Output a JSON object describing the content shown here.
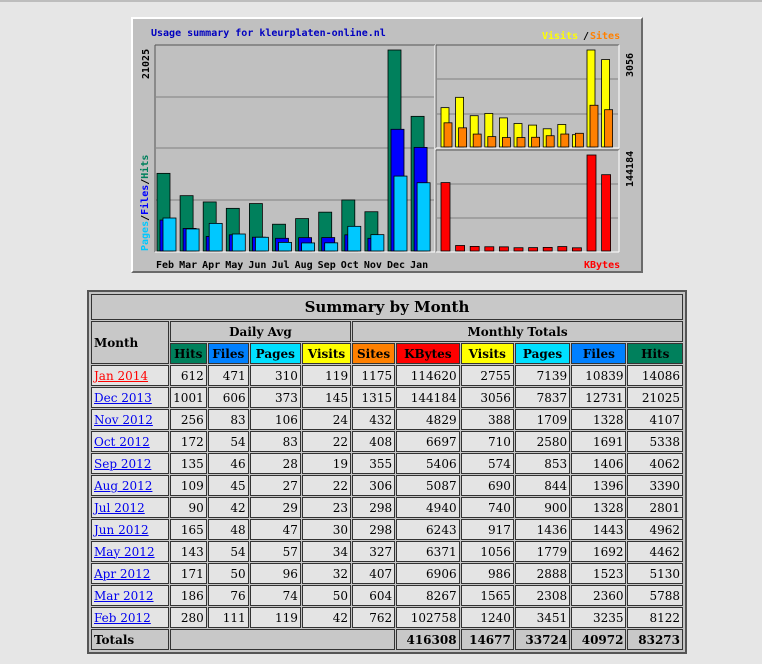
{
  "graph": {
    "title": "Usage summary for kleurplaten-online.nl",
    "legend_left": [
      "Pages",
      "/",
      "Files",
      "/",
      "Hits"
    ],
    "legend_visits": "Visits",
    "legend_slash": "/",
    "legend_sites": "Sites",
    "legend_kbytes": "KBytes",
    "max_hits_label": "21025",
    "max_visits_label": "3056",
    "max_kbytes_label": "144184",
    "colors": {
      "hits": "#00805c",
      "files": "#0000ff",
      "pages": "#00c8ff",
      "visits": "#ffff00",
      "sites": "#ff8000",
      "kbytes": "#ff0000",
      "title": "#0000c0"
    }
  },
  "chart_data": {
    "type": "bar",
    "categories": [
      "Feb",
      "Mar",
      "Apr",
      "May",
      "Jun",
      "Jul",
      "Aug",
      "Sep",
      "Oct",
      "Nov",
      "Dec",
      "Jan"
    ],
    "series": [
      {
        "name": "Hits",
        "values": [
          8122,
          5788,
          5130,
          4462,
          4962,
          2801,
          3390,
          4062,
          5338,
          4107,
          21025,
          14086
        ]
      },
      {
        "name": "Files",
        "values": [
          3235,
          2360,
          1523,
          1692,
          1443,
          1328,
          1396,
          1406,
          1691,
          1328,
          12731,
          10839
        ]
      },
      {
        "name": "Pages",
        "values": [
          3451,
          2308,
          2888,
          1779,
          1436,
          900,
          844,
          853,
          2580,
          1709,
          7837,
          7139
        ]
      },
      {
        "name": "Visits",
        "values": [
          1240,
          1565,
          986,
          1056,
          917,
          740,
          690,
          574,
          710,
          388,
          3056,
          2755
        ]
      },
      {
        "name": "Sites",
        "values": [
          762,
          604,
          407,
          327,
          298,
          298,
          306,
          355,
          408,
          432,
          1315,
          1175
        ]
      },
      {
        "name": "KBytes",
        "values": [
          102758,
          8267,
          6906,
          6371,
          6243,
          4940,
          5087,
          5406,
          6697,
          4829,
          144184,
          114620
        ]
      }
    ],
    "ylim_hits": [
      0,
      21025
    ],
    "ylim_visits": [
      0,
      3056
    ],
    "ylim_kbytes": [
      0,
      144184
    ]
  },
  "summary": {
    "caption": "Summary by Month",
    "month_label": "Month",
    "daily_avg_label": "Daily Avg",
    "monthly_totals_label": "Monthly Totals",
    "daily_headers": [
      "Hits",
      "Files",
      "Pages",
      "Visits"
    ],
    "monthly_headers": [
      "Sites",
      "KBytes",
      "Visits",
      "Pages",
      "Files",
      "Hits"
    ],
    "rows": [
      {
        "month": "Jan 2014",
        "current": true,
        "vals": [
          "612",
          "471",
          "310",
          "119",
          "1175",
          "114620",
          "2755",
          "7139",
          "10839",
          "14086"
        ]
      },
      {
        "month": "Dec 2013",
        "current": false,
        "vals": [
          "1001",
          "606",
          "373",
          "145",
          "1315",
          "144184",
          "3056",
          "7837",
          "12731",
          "21025"
        ]
      },
      {
        "month": "Nov 2012",
        "current": false,
        "vals": [
          "256",
          "83",
          "106",
          "24",
          "432",
          "4829",
          "388",
          "1709",
          "1328",
          "4107"
        ]
      },
      {
        "month": "Oct 2012",
        "current": false,
        "vals": [
          "172",
          "54",
          "83",
          "22",
          "408",
          "6697",
          "710",
          "2580",
          "1691",
          "5338"
        ]
      },
      {
        "month": "Sep 2012",
        "current": false,
        "vals": [
          "135",
          "46",
          "28",
          "19",
          "355",
          "5406",
          "574",
          "853",
          "1406",
          "4062"
        ]
      },
      {
        "month": "Aug 2012",
        "current": false,
        "vals": [
          "109",
          "45",
          "27",
          "22",
          "306",
          "5087",
          "690",
          "844",
          "1396",
          "3390"
        ]
      },
      {
        "month": "Jul 2012",
        "current": false,
        "vals": [
          "90",
          "42",
          "29",
          "23",
          "298",
          "4940",
          "740",
          "900",
          "1328",
          "2801"
        ]
      },
      {
        "month": "Jun 2012",
        "current": false,
        "vals": [
          "165",
          "48",
          "47",
          "30",
          "298",
          "6243",
          "917",
          "1436",
          "1443",
          "4962"
        ]
      },
      {
        "month": "May 2012",
        "current": false,
        "vals": [
          "143",
          "54",
          "57",
          "34",
          "327",
          "6371",
          "1056",
          "1779",
          "1692",
          "4462"
        ]
      },
      {
        "month": "Apr 2012",
        "current": false,
        "vals": [
          "171",
          "50",
          "96",
          "32",
          "407",
          "6906",
          "986",
          "2888",
          "1523",
          "5130"
        ]
      },
      {
        "month": "Mar 2012",
        "current": false,
        "vals": [
          "186",
          "76",
          "74",
          "50",
          "604",
          "8267",
          "1565",
          "2308",
          "2360",
          "5788"
        ]
      },
      {
        "month": "Feb 2012",
        "current": false,
        "vals": [
          "280",
          "111",
          "119",
          "42",
          "762",
          "102758",
          "1240",
          "3451",
          "3235",
          "8122"
        ]
      }
    ],
    "totals_label": "Totals",
    "totals": [
      "416308",
      "14677",
      "33724",
      "40972",
      "83273"
    ]
  }
}
